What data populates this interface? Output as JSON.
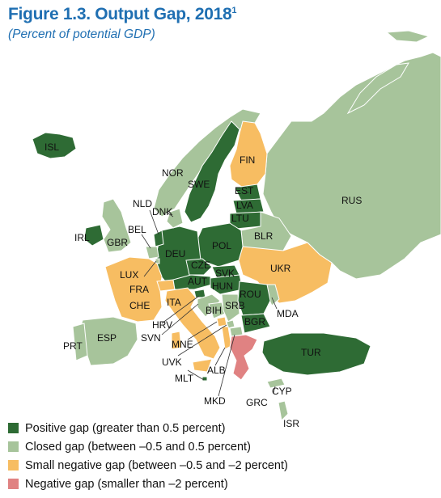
{
  "title": "Figure 1.3. Output Gap, 2018",
  "title_note": "1",
  "subtitle": "(Percent of potential GDP)",
  "colors": {
    "positive": "#2e6b34",
    "closed": "#a7c49b",
    "small_negative": "#f7bd62",
    "negative": "#e08282",
    "border": "#ffffff"
  },
  "legend": [
    {
      "category": "positive",
      "label": "Positive gap (greater than 0.5 percent)"
    },
    {
      "category": "closed",
      "label": "Closed gap (between –0.5 and 0.5 percent)"
    },
    {
      "category": "small_negative",
      "label": "Small negative gap (between –0.5 and –2 percent)"
    },
    {
      "category": "negative",
      "label": "Negative gap (smaller than –2 percent)"
    }
  ],
  "countries": {
    "ISL": "positive",
    "NOR": "closed",
    "SWE": "positive",
    "FIN": "small_negative",
    "EST": "positive",
    "LVA": "positive",
    "LTU": "positive",
    "RUS": "closed",
    "BLR": "closed",
    "UKR": "small_negative",
    "MDA": "closed",
    "ROU": "positive",
    "BGR": "positive",
    "TUR": "positive",
    "GRC": "negative",
    "CYP": "closed",
    "ISR": "closed",
    "MKD": "closed",
    "ALB": "small_negative",
    "MNE": "small_negative",
    "UVK": "closed",
    "SRB": "closed",
    "BIH": "closed",
    "HRV": "closed",
    "SVN": "positive",
    "HUN": "positive",
    "SVK": "positive",
    "CZE": "positive",
    "POL": "positive",
    "AUT": "positive",
    "DEU": "positive",
    "DNK": "closed",
    "NLD": "positive",
    "BEL": "closed",
    "LUX": "closed",
    "FRA": "small_negative",
    "CHE": "small_negative",
    "ITA": "small_negative",
    "ESP": "closed",
    "PRT": "closed",
    "GBR": "closed",
    "IRL": "positive",
    "MLT": "positive"
  },
  "labels": {
    "ISL": "ISL",
    "NOR": "NOR",
    "SWE": "SWE",
    "FIN": "FIN",
    "EST": "EST",
    "LVA": "LVA",
    "LTU": "LTU",
    "RUS": "RUS",
    "BLR": "BLR",
    "UKR": "UKR",
    "MDA": "MDA",
    "ROU": "ROU",
    "BGR": "BGR",
    "TUR": "TUR",
    "GRC": "GRC",
    "CYP": "CYP",
    "ISR": "ISR",
    "MKD": "MKD",
    "ALB": "ALB",
    "MNE": "MNE",
    "UVK": "UVK",
    "SRB": "SRB",
    "BIH": "BIH",
    "HRV": "HRV",
    "SVN": "SVN",
    "HUN": "HUN",
    "SVK": "SVK",
    "CZE": "CZE",
    "POL": "POL",
    "AUT": "AUT",
    "DEU": "DEU",
    "DNK": "DNK",
    "NLD": "NLD",
    "BEL": "BEL",
    "LUX": "LUX",
    "FRA": "FRA",
    "CHE": "CHE",
    "ITA": "ITA",
    "ESP": "ESP",
    "PRT": "PRT",
    "GBR": "GBR",
    "IRL": "IRL",
    "MLT": "MLT"
  }
}
